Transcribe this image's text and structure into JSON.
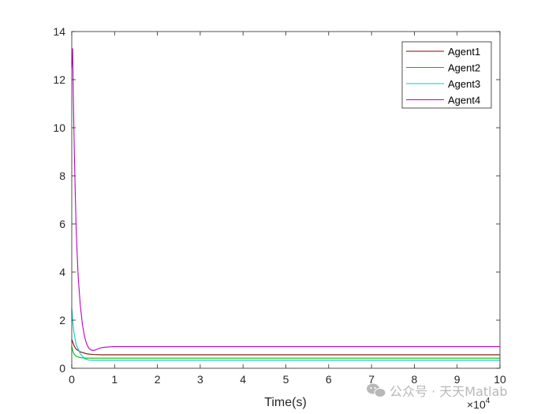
{
  "chart_data": {
    "type": "line",
    "xlabel": "Time(s)",
    "ylabel": "",
    "xlim": [
      0,
      10
    ],
    "ylim": [
      0,
      14
    ],
    "x_scale_exponent_label": "×10^4",
    "xticks": [
      0,
      1,
      2,
      3,
      4,
      5,
      6,
      7,
      8,
      9,
      10
    ],
    "yticks": [
      0,
      2,
      4,
      6,
      8,
      10,
      12,
      14
    ],
    "grid": false,
    "legend_placement": "top-right",
    "series": [
      {
        "name": "Agent1",
        "color": "#8B0000",
        "x": [
          0,
          0.02,
          0.05,
          0.1,
          0.2,
          0.35,
          0.5,
          0.7,
          1,
          10
        ],
        "y": [
          1.2,
          1.1,
          0.95,
          0.8,
          0.68,
          0.6,
          0.57,
          0.56,
          0.56,
          0.56
        ]
      },
      {
        "name": "Agent2",
        "color": "#00C000",
        "x": [
          0,
          0.02,
          0.05,
          0.1,
          0.2,
          0.35,
          0.5,
          0.7,
          1,
          10
        ],
        "y": [
          0.9,
          0.75,
          0.6,
          0.5,
          0.44,
          0.42,
          0.42,
          0.42,
          0.42,
          0.42
        ]
      },
      {
        "name": "Agent3",
        "color": "#00CCCC",
        "x": [
          0,
          0.02,
          0.05,
          0.1,
          0.2,
          0.3,
          0.4,
          0.5,
          0.7,
          1,
          10
        ],
        "y": [
          2.5,
          2.0,
          1.5,
          1.0,
          0.6,
          0.4,
          0.34,
          0.33,
          0.33,
          0.33,
          0.33
        ]
      },
      {
        "name": "Agent4",
        "color": "#C000C0",
        "x": [
          0,
          0.02,
          0.04,
          0.06,
          0.08,
          0.1,
          0.12,
          0.15,
          0.2,
          0.25,
          0.3,
          0.35,
          0.4,
          0.45,
          0.5,
          0.55,
          0.6,
          0.7,
          0.8,
          1,
          10
        ],
        "y": [
          12.5,
          13.3,
          11,
          9,
          7.4,
          6,
          5,
          3.8,
          2.6,
          1.8,
          1.3,
          1.0,
          0.83,
          0.76,
          0.74,
          0.76,
          0.8,
          0.86,
          0.88,
          0.9,
          0.9
        ]
      }
    ]
  },
  "watermark": {
    "text": "公众号 · 天天Matlab"
  }
}
